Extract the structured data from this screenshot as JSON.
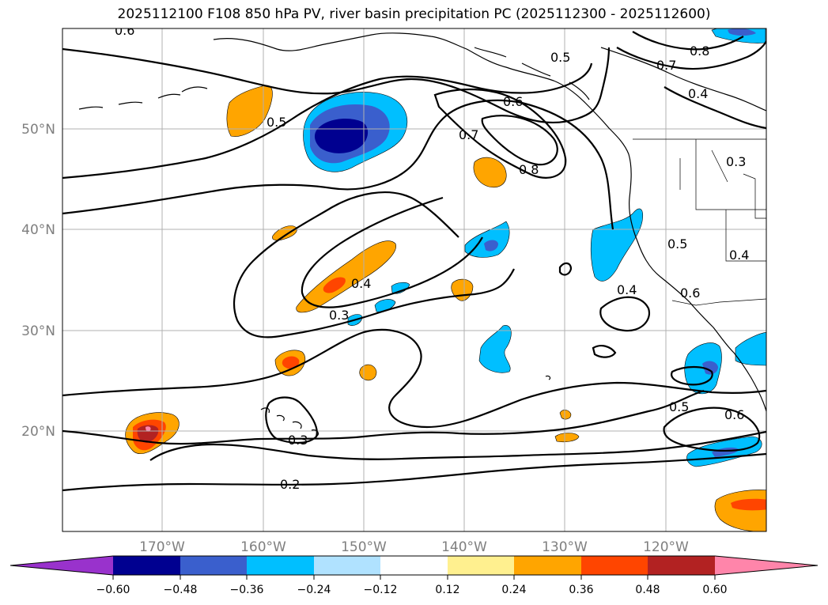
{
  "title": "2025112100 F108 850 hPa PV, river basin precipitation PC (2025112300 - 2025112600)",
  "map": {
    "lon_ticks": [
      "170°W",
      "160°W",
      "150°W",
      "140°W",
      "130°W",
      "120°W"
    ],
    "lat_ticks": [
      "50°N",
      "40°N",
      "30°N",
      "20°N"
    ],
    "contour_labels": [
      "0.6",
      "0.5",
      "0.7",
      "0.8",
      "0.6",
      "0.7",
      "0.8",
      "0.5",
      "0.4",
      "0.3",
      "0.4",
      "0.3",
      "0.5",
      "0.4",
      "0.6",
      "0.4",
      "0.5",
      "0.6",
      "0.3",
      "0.2"
    ]
  },
  "colorbar": {
    "ticks": [
      "−0.60",
      "−0.48",
      "−0.36",
      "−0.24",
      "−0.12",
      "0.12",
      "0.24",
      "0.36",
      "0.48",
      "0.60"
    ],
    "colors": [
      "#9932cc",
      "#000090",
      "#3a5fcd",
      "#00bfff",
      "#b0e2ff",
      "#ffffff",
      "#fff08f",
      "#ffa500",
      "#ff4500",
      "#b22222",
      "#ff85aa"
    ]
  },
  "colors": {
    "neg_strong": "#000090",
    "neg_medium": "#3a5fcd",
    "neg_light": "#00bfff",
    "pos_light": "#ffa500",
    "pos_medium": "#ff4500",
    "pos_strong": "#b22222",
    "pos_max": "#ff85aa"
  }
}
